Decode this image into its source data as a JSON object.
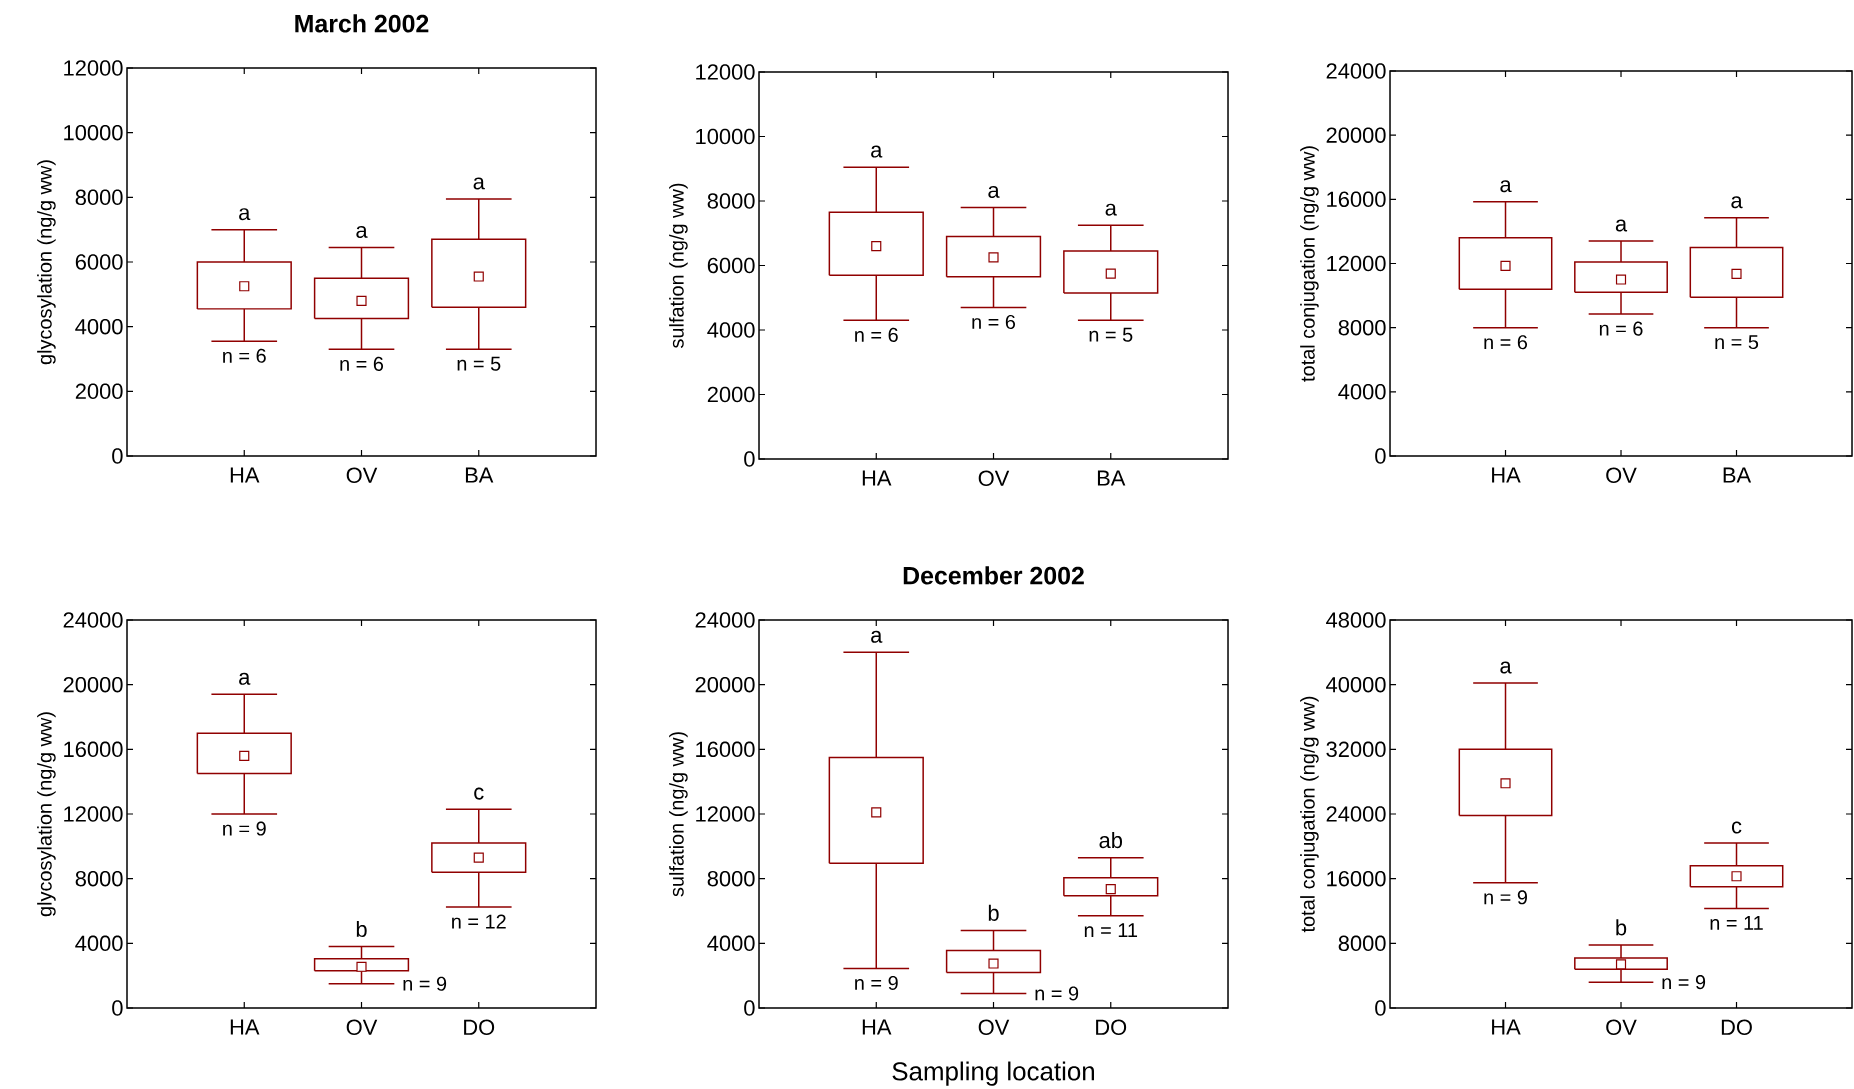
{
  "chart_data": [
    {
      "type": "box",
      "title": "March 2002",
      "ylabel": "glycosylation (ng/g ww)",
      "categories": [
        "HA",
        "OV",
        "BA"
      ],
      "color": "#900000",
      "ylim": [
        0,
        12000
      ],
      "yticks": [
        0,
        2000,
        4000,
        6000,
        8000,
        10000,
        12000
      ],
      "boxes": [
        {
          "low": 3550,
          "q1": 4550,
          "q3": 6000,
          "high": 7000,
          "mean": 5250
        },
        {
          "low": 3300,
          "q1": 4250,
          "q3": 5500,
          "high": 6450,
          "mean": 4800
        },
        {
          "low": 3300,
          "q1": 4600,
          "q3": 6700,
          "high": 7950,
          "mean": 5550
        }
      ],
      "annotations": [
        "a",
        "a",
        "a",
        "n = 6",
        "n = 6",
        "n = 5"
      ]
    },
    {
      "type": "box",
      "ylabel": "sulfation (ng/g ww)",
      "categories": [
        "HA",
        "OV",
        "BA"
      ],
      "color": "#900000",
      "ylim": [
        0,
        12000
      ],
      "yticks": [
        0,
        2000,
        4000,
        6000,
        8000,
        10000,
        12000
      ],
      "boxes": [
        {
          "low": 4300,
          "q1": 5700,
          "q3": 7650,
          "high": 9050,
          "mean": 6600
        },
        {
          "low": 4700,
          "q1": 5650,
          "q3": 6900,
          "high": 7800,
          "mean": 6250
        },
        {
          "low": 4300,
          "q1": 5150,
          "q3": 6450,
          "high": 7250,
          "mean": 5750
        }
      ],
      "annotations": [
        "a",
        "a",
        "a",
        "n = 6",
        "n = 6",
        "n = 5"
      ]
    },
    {
      "type": "box",
      "ylabel": "total conjugation (ng/g ww)",
      "categories": [
        "HA",
        "OV",
        "BA"
      ],
      "color": "#900000",
      "ylim": [
        0,
        24000
      ],
      "yticks": [
        0,
        4000,
        8000,
        12000,
        16000,
        20000,
        24000
      ],
      "boxes": [
        {
          "low": 8000,
          "q1": 10400,
          "q3": 13600,
          "high": 15850,
          "mean": 11850
        },
        {
          "low": 8850,
          "q1": 10200,
          "q3": 12100,
          "high": 13400,
          "mean": 11000
        },
        {
          "low": 8000,
          "q1": 9900,
          "q3": 13000,
          "high": 14850,
          "mean": 11350
        }
      ],
      "annotations": [
        "a",
        "a",
        "a",
        "n = 6",
        "n = 6",
        "n = 5"
      ]
    },
    {
      "type": "box",
      "ylabel": "glycosylation (ng/g ww)",
      "categories": [
        "HA",
        "OV",
        "DO"
      ],
      "color": "#900000",
      "ylim": [
        0,
        24000
      ],
      "yticks": [
        0,
        4000,
        8000,
        12000,
        16000,
        20000,
        24000
      ],
      "boxes": [
        {
          "low": 12000,
          "q1": 14500,
          "q3": 17000,
          "high": 19400,
          "mean": 15600
        },
        {
          "low": 1500,
          "q1": 2300,
          "q3": 3050,
          "high": 3800,
          "mean": 2550
        },
        {
          "low": 6250,
          "q1": 8400,
          "q3": 10200,
          "high": 12300,
          "mean": 9300
        }
      ],
      "annotations": [
        "a",
        "b",
        "c",
        "n = 9",
        "n = 9",
        "n = 12"
      ]
    },
    {
      "type": "box",
      "title": "December 2002",
      "xlabel": "Sampling location",
      "ylabel": "sulfation (ng/g ww)",
      "categories": [
        "HA",
        "OV",
        "DO"
      ],
      "color": "#900000",
      "ylim": [
        0,
        24000
      ],
      "yticks": [
        0,
        4000,
        8000,
        12000,
        16000,
        20000,
        24000
      ],
      "boxes": [
        {
          "low": 2450,
          "q1": 8950,
          "q3": 15500,
          "high": 22000,
          "mean": 12100
        },
        {
          "low": 900,
          "q1": 2200,
          "q3": 3550,
          "high": 4800,
          "mean": 2750
        },
        {
          "low": 5700,
          "q1": 6950,
          "q3": 8050,
          "high": 9300,
          "mean": 7350
        }
      ],
      "annotations": [
        "a",
        "b",
        "ab",
        "n = 9",
        "n = 9",
        "n = 11"
      ]
    },
    {
      "type": "box",
      "ylabel": "total conjugation (ng/g ww)",
      "categories": [
        "HA",
        "OV",
        "DO"
      ],
      "color": "#900000",
      "ylim": [
        0,
        48000
      ],
      "yticks": [
        0,
        8000,
        16000,
        24000,
        32000,
        40000,
        48000
      ],
      "boxes": [
        {
          "low": 15500,
          "q1": 23800,
          "q3": 32000,
          "high": 40200,
          "mean": 27800
        },
        {
          "low": 3200,
          "q1": 4800,
          "q3": 6200,
          "high": 7800,
          "mean": 5400
        },
        {
          "low": 12300,
          "q1": 15000,
          "q3": 17600,
          "high": 20400,
          "mean": 16300
        }
      ],
      "annotations": [
        "a",
        "b",
        "c",
        "n = 9",
        "n = 9",
        "n = 11"
      ]
    }
  ]
}
